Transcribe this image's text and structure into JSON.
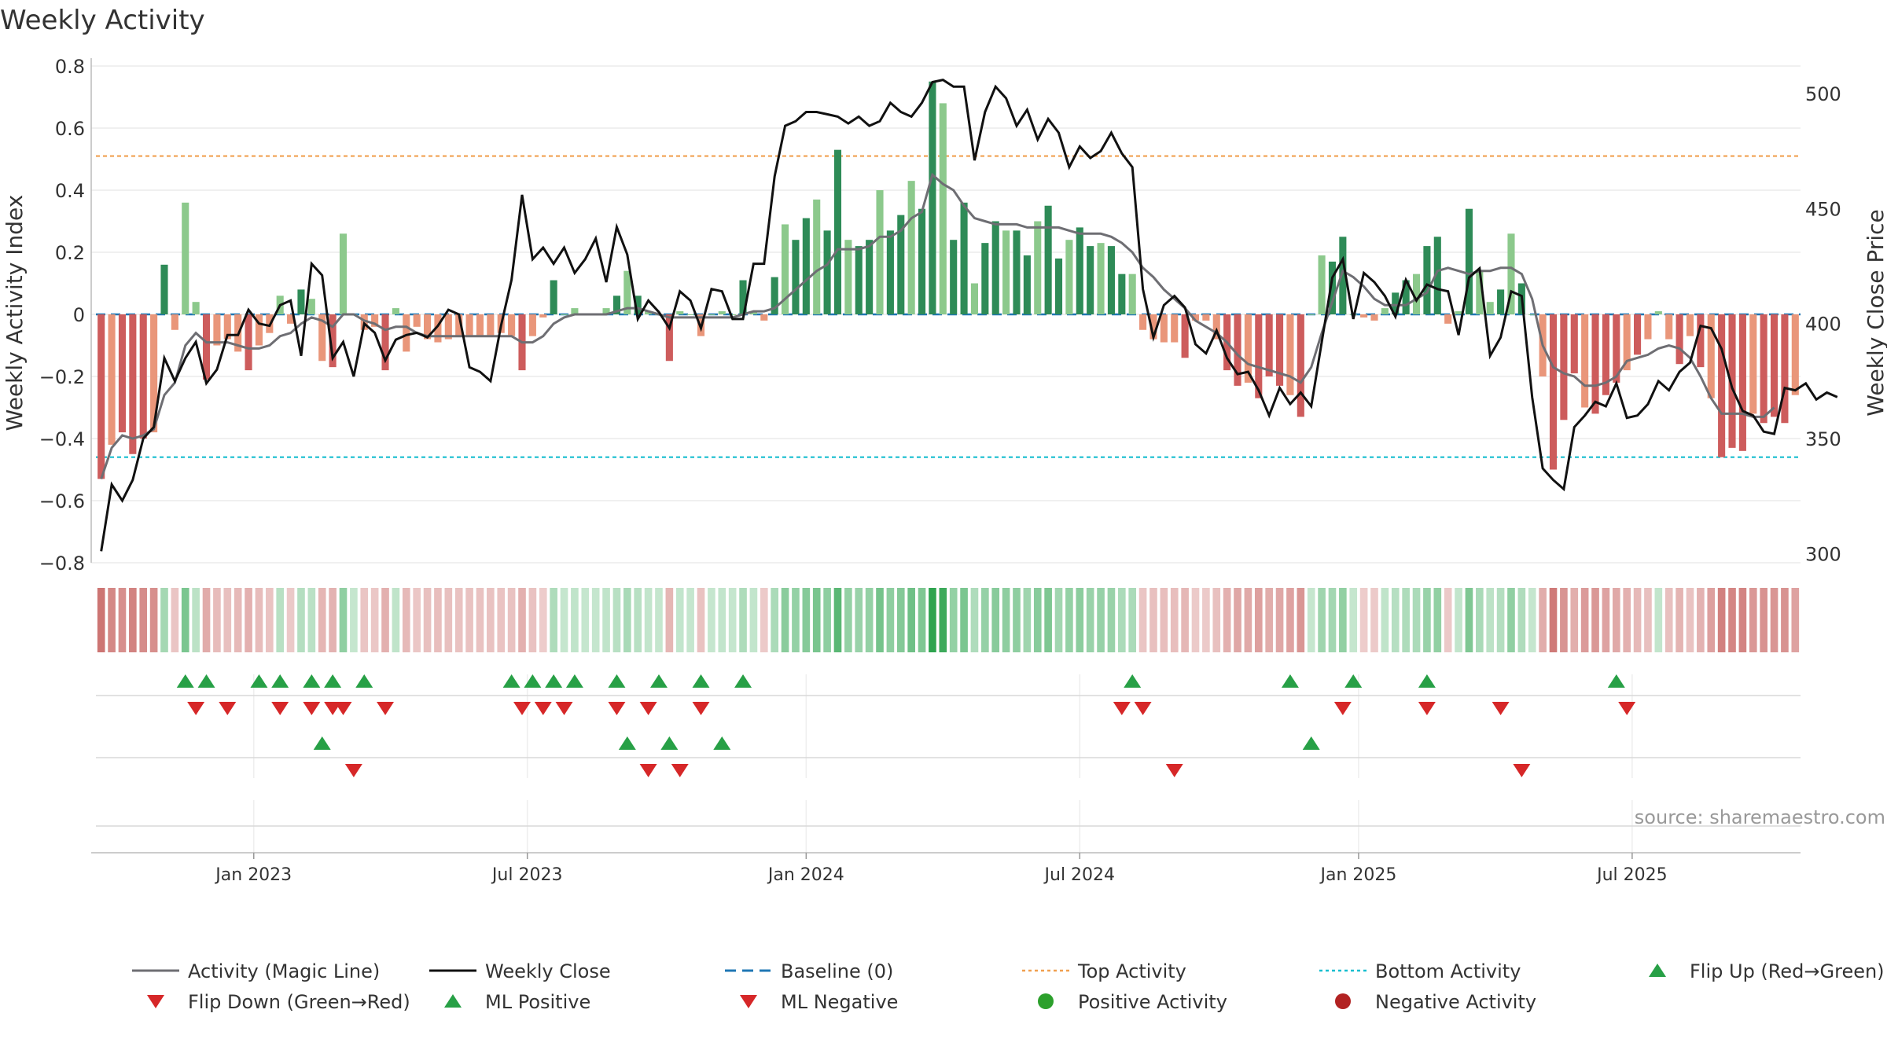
{
  "title": "Weekly Activity",
  "source": "source: sharemaestro.com",
  "colors": {
    "pos_strong": "#2e8b57",
    "pos_light": "#8cc98c",
    "neg_strong": "#cd5c5c",
    "neg_light": "#e9967a",
    "magic_line": "#6e6e73",
    "close_line": "#111111",
    "baseline": "#1f77b4",
    "top": "#f0a050",
    "bottom": "#17becf",
    "flip_up": "#27a046",
    "flip_down": "#d62728",
    "pos_activity": "#2ca02c",
    "neg_activity": "#b22222"
  },
  "legend": [
    {
      "label": "Activity (Magic Line)",
      "kind": "line",
      "color": "#6e6e73"
    },
    {
      "label": "Weekly Close",
      "kind": "line",
      "color": "#111111"
    },
    {
      "label": "Baseline (0)",
      "kind": "dash",
      "color": "#1f77b4"
    },
    {
      "label": "Top Activity",
      "kind": "dot",
      "color": "#f0a050"
    },
    {
      "label": "Bottom Activity",
      "kind": "dot",
      "color": "#17becf"
    },
    {
      "label": "Flip Up (Red→Green)",
      "kind": "up",
      "color": "#27a046"
    },
    {
      "label": "Flip Down (Green→Red)",
      "kind": "down",
      "color": "#d62728"
    },
    {
      "label": "ML Positive",
      "kind": "up",
      "color": "#27a046"
    },
    {
      "label": "ML Negative",
      "kind": "down",
      "color": "#d62728"
    },
    {
      "label": "Positive Activity",
      "kind": "circle",
      "color": "#2ca02c"
    },
    {
      "label": "Negative Activity",
      "kind": "circle",
      "color": "#b22222"
    }
  ],
  "chart_data": {
    "type": "bar",
    "title": "Weekly Activity",
    "ylabel": "Weekly Activity Index",
    "y2label": "Weekly Close Price",
    "ylim": [
      -0.8,
      0.8
    ],
    "y2lim": [
      296,
      512
    ],
    "yticks": [
      "0.8",
      "0.6",
      "0.4",
      "0.2",
      "0",
      "−0.2",
      "−0.4",
      "−0.6",
      "−0.8"
    ],
    "y2ticks": [
      "500",
      "450",
      "400",
      "350",
      "300"
    ],
    "xticks": [
      "Jan 2023",
      "Jul 2023",
      "Jan 2024",
      "Jul 2024",
      "Jan 2025",
      "Jul 2025"
    ],
    "x_tick_weeks": [
      14.5,
      40.5,
      67,
      93,
      119.5,
      145.5
    ],
    "top_activity": 0.51,
    "bottom_activity": -0.46,
    "activity": [
      -0.53,
      -0.42,
      -0.38,
      -0.45,
      -0.4,
      -0.38,
      0.16,
      -0.05,
      0.36,
      0.04,
      -0.21,
      -0.1,
      -0.08,
      -0.12,
      -0.18,
      -0.1,
      -0.06,
      0.06,
      -0.03,
      0.08,
      0.05,
      -0.15,
      -0.17,
      0.26,
      0.0,
      -0.05,
      -0.04,
      -0.18,
      0.02,
      -0.12,
      -0.04,
      -0.08,
      -0.09,
      -0.08,
      -0.07,
      -0.07,
      -0.07,
      -0.07,
      -0.06,
      -0.07,
      -0.18,
      -0.07,
      -0.01,
      0.11,
      0.0,
      0.02,
      0.0,
      0.0,
      0.02,
      0.06,
      0.14,
      0.06,
      0.01,
      0.0,
      -0.15,
      0.01,
      0.0,
      -0.07,
      0.0,
      0.01,
      0.0,
      0.11,
      0.01,
      -0.02,
      0.12,
      0.29,
      0.24,
      0.31,
      0.37,
      0.27,
      0.53,
      0.24,
      0.22,
      0.24,
      0.4,
      0.27,
      0.32,
      0.43,
      0.34,
      0.75,
      0.68,
      0.24,
      0.36,
      0.1,
      0.23,
      0.3,
      0.27,
      0.27,
      0.19,
      0.3,
      0.35,
      0.18,
      0.24,
      0.28,
      0.22,
      0.23,
      0.22,
      0.13,
      0.13,
      -0.05,
      -0.08,
      -0.09,
      -0.09,
      -0.14,
      -0.02,
      -0.02,
      -0.08,
      -0.18,
      -0.23,
      -0.22,
      -0.27,
      -0.2,
      -0.23,
      -0.26,
      -0.33,
      0.0,
      0.19,
      0.17,
      0.25,
      0.0,
      -0.01,
      -0.02,
      0.02,
      0.07,
      0.11,
      0.13,
      0.22,
      0.25,
      -0.03,
      0.01,
      0.34,
      0.14,
      0.04,
      0.08,
      0.26,
      0.1,
      0.0,
      -0.2,
      -0.5,
      -0.34,
      -0.19,
      -0.3,
      -0.32,
      -0.26,
      -0.22,
      -0.18,
      -0.13,
      -0.08,
      0.01,
      -0.08,
      -0.16,
      -0.07,
      -0.17,
      -0.27,
      -0.46,
      -0.43,
      -0.44,
      -0.32,
      -0.35,
      -0.33,
      -0.35,
      -0.26
    ],
    "magic_line": [
      -0.53,
      -0.43,
      -0.39,
      -0.4,
      -0.39,
      -0.37,
      -0.26,
      -0.22,
      -0.1,
      -0.06,
      -0.09,
      -0.09,
      -0.09,
      -0.1,
      -0.11,
      -0.11,
      -0.1,
      -0.07,
      -0.06,
      -0.03,
      -0.01,
      -0.02,
      -0.04,
      0.0,
      0.0,
      -0.02,
      -0.03,
      -0.05,
      -0.04,
      -0.04,
      -0.06,
      -0.07,
      -0.07,
      -0.07,
      -0.07,
      -0.07,
      -0.07,
      -0.07,
      -0.07,
      -0.07,
      -0.09,
      -0.09,
      -0.07,
      -0.03,
      -0.01,
      0.0,
      0.0,
      0.0,
      0.0,
      0.01,
      0.02,
      0.02,
      0.01,
      0.0,
      -0.01,
      -0.01,
      -0.01,
      -0.01,
      -0.01,
      -0.01,
      -0.01,
      0.0,
      0.01,
      0.01,
      0.02,
      0.05,
      0.08,
      0.11,
      0.14,
      0.16,
      0.21,
      0.21,
      0.21,
      0.22,
      0.25,
      0.25,
      0.27,
      0.31,
      0.33,
      0.45,
      0.42,
      0.4,
      0.35,
      0.31,
      0.3,
      0.29,
      0.29,
      0.29,
      0.28,
      0.28,
      0.28,
      0.28,
      0.27,
      0.26,
      0.26,
      0.26,
      0.25,
      0.23,
      0.2,
      0.15,
      0.12,
      0.08,
      0.05,
      0.02,
      -0.02,
      -0.04,
      -0.06,
      -0.09,
      -0.13,
      -0.16,
      -0.17,
      -0.18,
      -0.19,
      -0.2,
      -0.22,
      -0.17,
      -0.06,
      0.04,
      0.14,
      0.12,
      0.09,
      0.05,
      0.03,
      0.03,
      0.03,
      0.05,
      0.07,
      0.14,
      0.15,
      0.14,
      0.13,
      0.14,
      0.14,
      0.15,
      0.15,
      0.13,
      0.05,
      -0.1,
      -0.17,
      -0.19,
      -0.2,
      -0.23,
      -0.23,
      -0.22,
      -0.2,
      -0.15,
      -0.14,
      -0.13,
      -0.11,
      -0.1,
      -0.11,
      -0.14,
      -0.2,
      -0.27,
      -0.32,
      -0.32,
      -0.32,
      -0.33,
      -0.33,
      -0.3
    ],
    "weekly_close": [
      301,
      330,
      323,
      332,
      350,
      355,
      385,
      375,
      385,
      392,
      374,
      380,
      395,
      395,
      406,
      400,
      399,
      408,
      410,
      386,
      426,
      421,
      385,
      392,
      377,
      400,
      396,
      384,
      393,
      395,
      396,
      394,
      399,
      406,
      404,
      381,
      379,
      375,
      399,
      419,
      456,
      428,
      433,
      426,
      433,
      422,
      428,
      437,
      418,
      442,
      430,
      402,
      410,
      405,
      398,
      414,
      410,
      398,
      415,
      414,
      402,
      402,
      426,
      426,
      464,
      486,
      488,
      492,
      492,
      491,
      490,
      487,
      490,
      486,
      488,
      496,
      492,
      490,
      496,
      505,
      506,
      503,
      503,
      471,
      492,
      503,
      498,
      486,
      493,
      480,
      489,
      483,
      468,
      477,
      472,
      475,
      483,
      474,
      468,
      415,
      394,
      408,
      412,
      407,
      391,
      387,
      397,
      385,
      378,
      379,
      371,
      360,
      372,
      365,
      370,
      364,
      392,
      420,
      428,
      402,
      422,
      418,
      412,
      403,
      419,
      410,
      417,
      415,
      414,
      395,
      420,
      424,
      386,
      394,
      414,
      412,
      368,
      337,
      332,
      328,
      355,
      360,
      366,
      364,
      374,
      359,
      360,
      365,
      375,
      371,
      379,
      383,
      399,
      398,
      389,
      372,
      362,
      360,
      353,
      352,
      372,
      371,
      374,
      367,
      370,
      368
    ],
    "flip_up_row1": [
      8,
      10,
      15,
      17,
      20,
      22,
      25,
      39,
      41,
      43,
      45,
      49,
      53,
      57,
      61,
      98,
      113,
      119,
      126,
      144
    ],
    "flip_down_row1": [
      9,
      12,
      17,
      20,
      22,
      23,
      27,
      40,
      42,
      44,
      49,
      52,
      57,
      97,
      99,
      118,
      126,
      133,
      145
    ],
    "ml_up_row2": [
      21,
      50,
      54,
      59,
      115
    ],
    "ml_down_row2": [
      24,
      52,
      55,
      102,
      135
    ]
  }
}
